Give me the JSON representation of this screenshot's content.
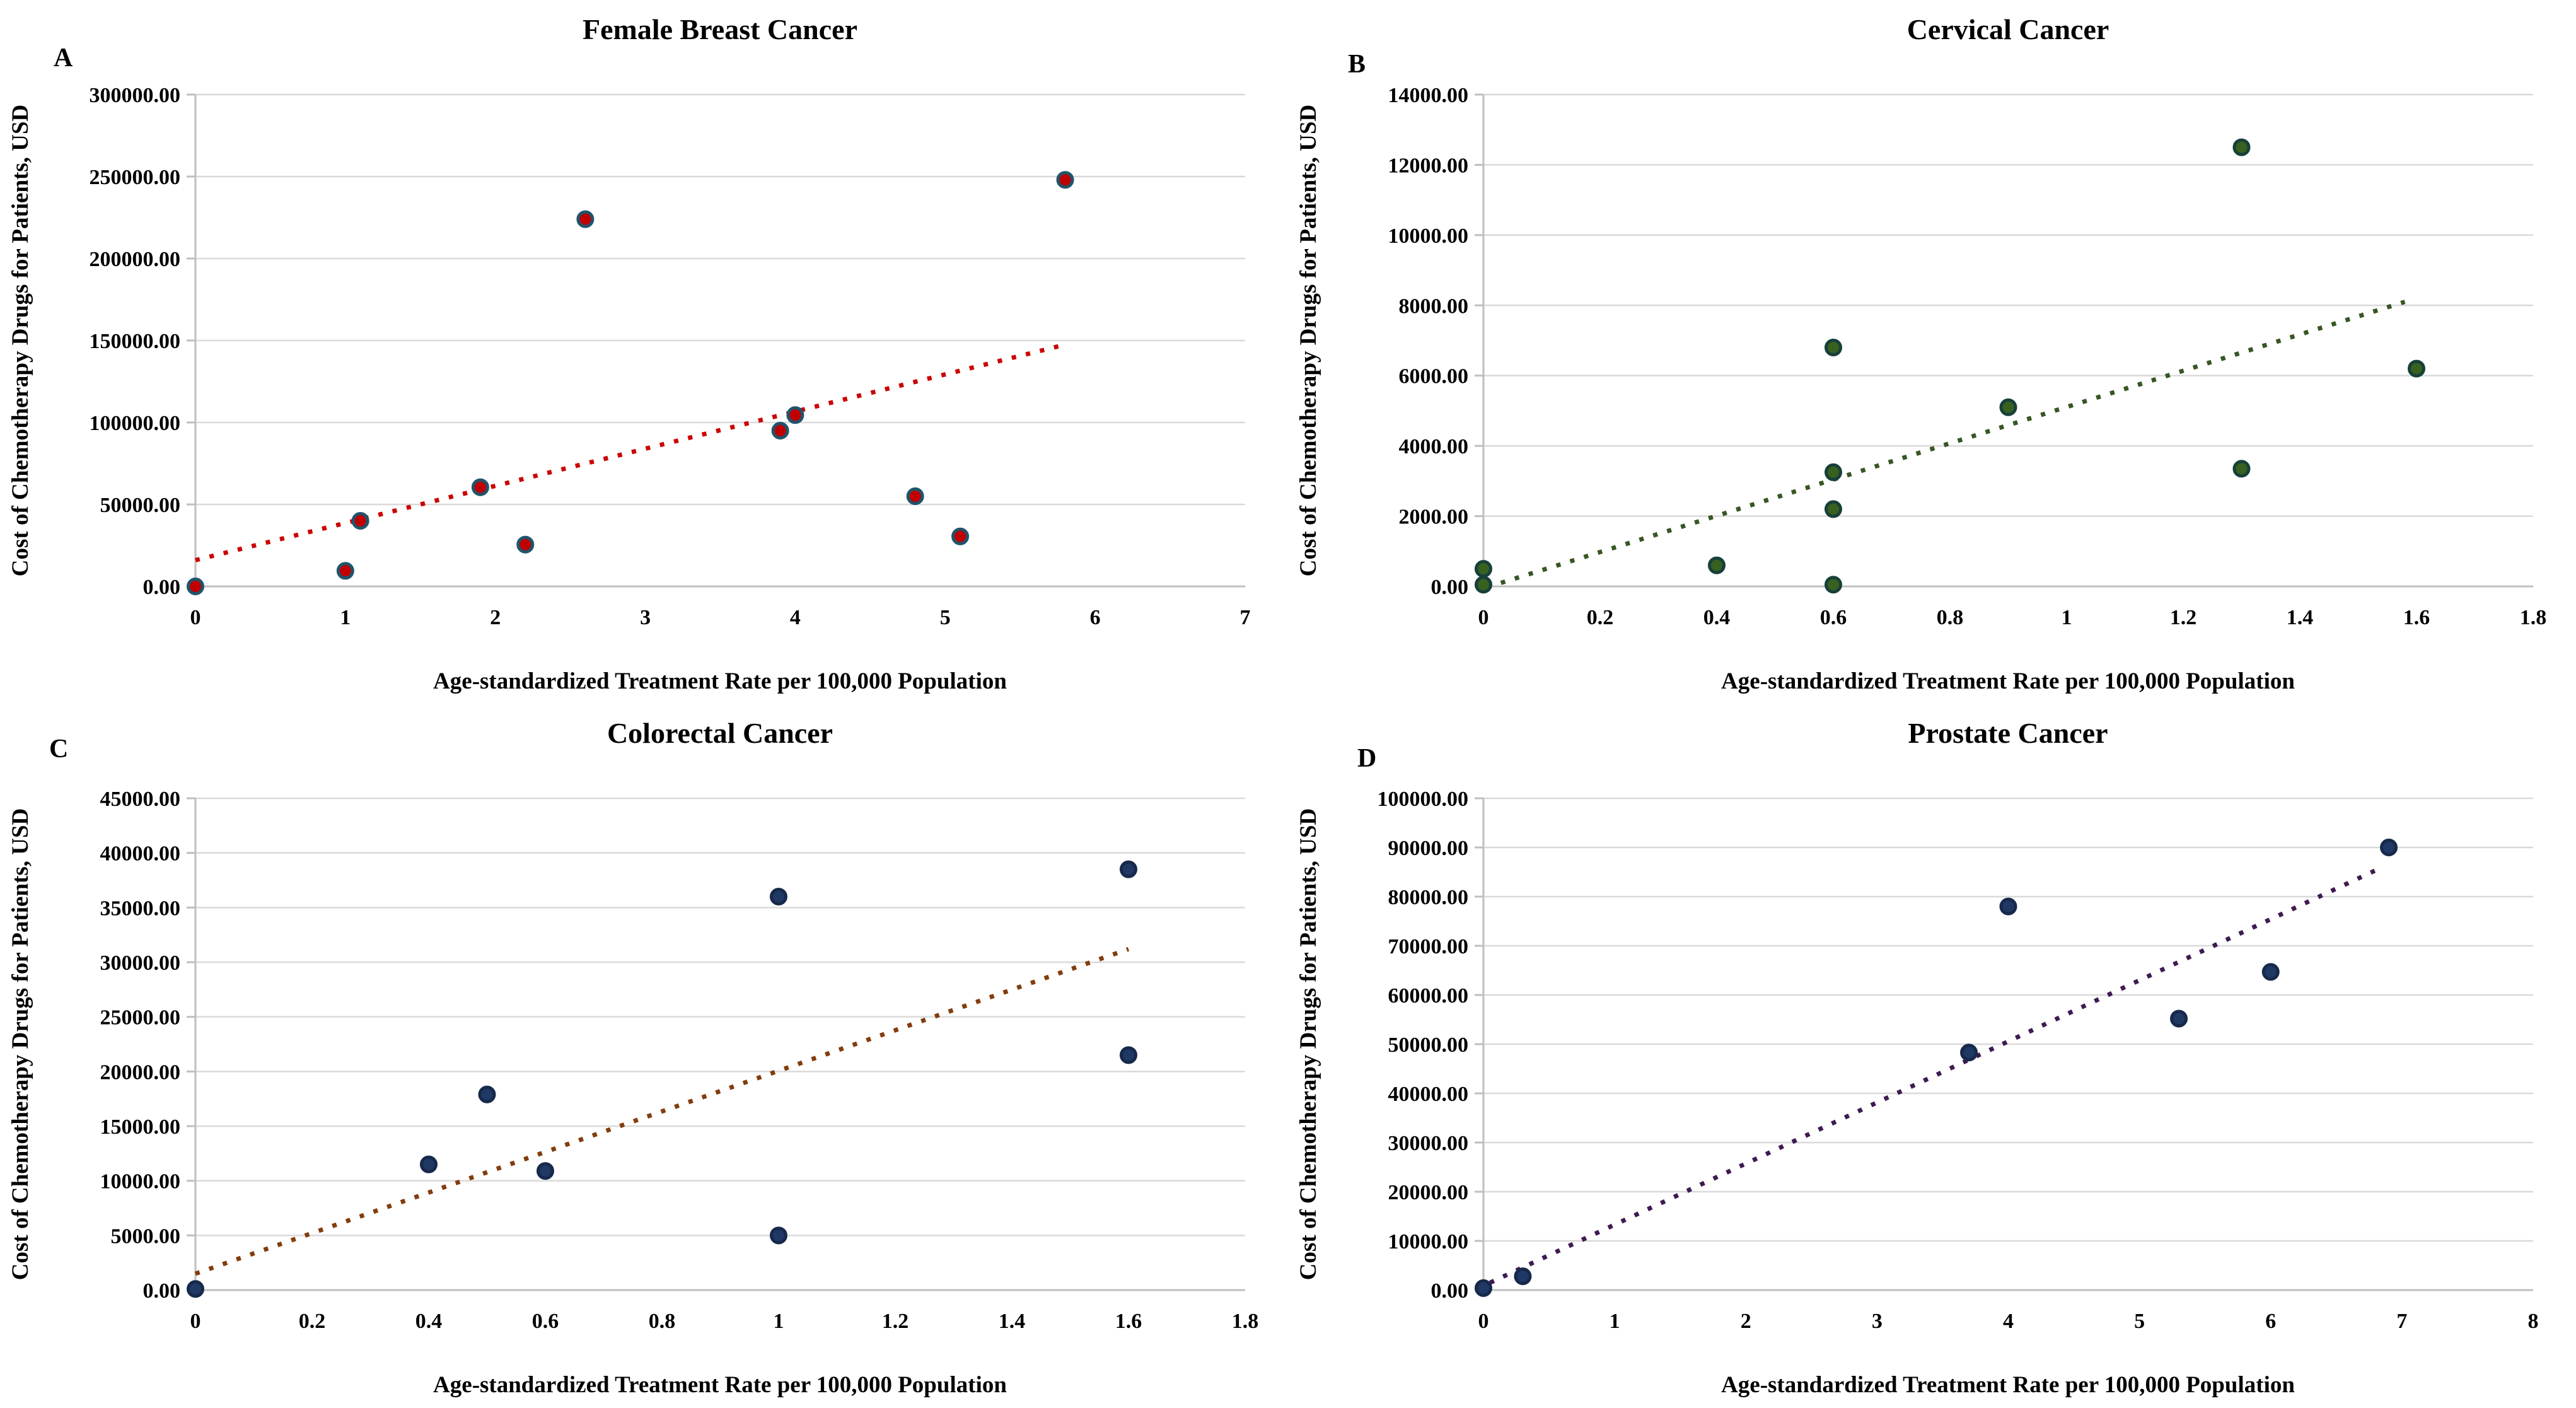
{
  "figure": {
    "background": "#FFFFFF"
  },
  "styles": {
    "grid_color": "#D9D9D9",
    "axis_color": "#BFBFBF",
    "text_color": "#000000"
  },
  "chart_data": [
    {
      "panel_label": "A",
      "title": "Female Breast Cancer",
      "type": "scatter",
      "xlabel": "Age-standardized Treatment Rate per 100,000 Population",
      "ylabel": "Cost of Chemotherapy Drugs for Patients, USD",
      "xlim": [
        0,
        7
      ],
      "ylim": [
        0,
        300000
      ],
      "xticks": [
        0,
        1,
        2,
        3,
        4,
        5,
        6,
        7
      ],
      "xtick_labels": [
        "0",
        "1",
        "2",
        "3",
        "4",
        "5",
        "6",
        "7"
      ],
      "yticks": [
        0,
        50000,
        100000,
        150000,
        200000,
        250000,
        300000
      ],
      "ytick_labels": [
        "0.00",
        "50000.00",
        "100000.00",
        "150000.00",
        "200000.00",
        "250000.00",
        "300000.00"
      ],
      "grid": true,
      "legend": "none",
      "marker_color": "#C00000",
      "marker_edge_color": "#20546B",
      "trend_color": "#CC0000",
      "points": [
        [
          0,
          0
        ],
        [
          1,
          9500
        ],
        [
          1.1,
          40000
        ],
        [
          1.9,
          60500
        ],
        [
          2.2,
          25500
        ],
        [
          2.6,
          224000
        ],
        [
          3.9,
          95000
        ],
        [
          4,
          104500
        ],
        [
          4.8,
          55000
        ],
        [
          5.1,
          30500
        ],
        [
          5.8,
          248000
        ]
      ],
      "trendline": {
        "x": [
          0,
          5.78
        ],
        "y": [
          16000,
          147000
        ]
      }
    },
    {
      "panel_label": "B",
      "title": "Cervical Cancer",
      "type": "scatter",
      "xlabel": "Age-standardized Treatment Rate per 100,000 Population",
      "ylabel": "Cost of Chemotherapy Drugs for Patients, USD",
      "xlim": [
        0,
        1.8
      ],
      "ylim": [
        0,
        14000
      ],
      "xticks": [
        0,
        0.2,
        0.4,
        0.6,
        0.8,
        1,
        1.2,
        1.4,
        1.6,
        1.8
      ],
      "xtick_labels": [
        "0",
        "0.2",
        "0.4",
        "0.6",
        "0.8",
        "1",
        "1.2",
        "1.4",
        "1.6",
        "1.8"
      ],
      "yticks": [
        0,
        2000,
        4000,
        6000,
        8000,
        10000,
        12000,
        14000
      ],
      "ytick_labels": [
        "0.00",
        "2000.00",
        "4000.00",
        "6000.00",
        "8000.00",
        "10000.00",
        "12000.00",
        "14000.00"
      ],
      "grid": true,
      "legend": "none",
      "marker_color": "#38611F",
      "marker_edge_color": "#17403A",
      "trend_color": "#375623",
      "points": [
        [
          0,
          500
        ],
        [
          0,
          50
        ],
        [
          0.4,
          600
        ],
        [
          0.6,
          6800
        ],
        [
          0.6,
          3250
        ],
        [
          0.6,
          2200
        ],
        [
          0.6,
          50
        ],
        [
          0.9,
          5100
        ],
        [
          1.3,
          12500
        ],
        [
          1.3,
          3350
        ],
        [
          1.6,
          6200
        ]
      ],
      "trendline": {
        "x": [
          0.03,
          1.58
        ],
        "y": [
          100,
          8100
        ]
      }
    },
    {
      "panel_label": "C",
      "title": "Colorectal Cancer",
      "type": "scatter",
      "xlabel": "Age-standardized Treatment Rate per 100,000 Population",
      "ylabel": "Cost of Chemotherapy Drugs for Patients, USD",
      "xlim": [
        0,
        1.8
      ],
      "ylim": [
        0,
        45000
      ],
      "xticks": [
        0,
        0.2,
        0.4,
        0.6,
        0.8,
        1,
        1.2,
        1.4,
        1.6,
        1.8
      ],
      "xtick_labels": [
        "0",
        "0.2",
        "0.4",
        "0.6",
        "0.8",
        "1",
        "1.2",
        "1.4",
        "1.6",
        "1.8"
      ],
      "yticks": [
        0,
        5000,
        10000,
        15000,
        20000,
        25000,
        30000,
        35000,
        40000,
        45000
      ],
      "ytick_labels": [
        "0.00",
        "5000.00",
        "10000.00",
        "15000.00",
        "20000.00",
        "25000.00",
        "30000.00",
        "35000.00",
        "40000.00",
        "45000.00"
      ],
      "grid": true,
      "legend": "none",
      "marker_color": "#1F3864",
      "marker_edge_color": "#17294B",
      "trend_color": "#833C0C",
      "points": [
        [
          0,
          100
        ],
        [
          0.4,
          11500
        ],
        [
          0.5,
          17900
        ],
        [
          0.6,
          10900
        ],
        [
          1,
          36000
        ],
        [
          1,
          5000
        ],
        [
          1.6,
          38500
        ],
        [
          1.6,
          21500
        ]
      ],
      "trendline": {
        "x": [
          0,
          1.6
        ],
        "y": [
          1500,
          31200
        ]
      }
    },
    {
      "panel_label": "D",
      "title": "Prostate Cancer",
      "type": "scatter",
      "xlabel": "Age-standardized Treatment Rate per 100,000 Population",
      "ylabel": "Cost of Chemotherapy Drugs for Patients, USD",
      "xlim": [
        0,
        8
      ],
      "ylim": [
        0,
        100000
      ],
      "xticks": [
        0,
        1,
        2,
        3,
        4,
        5,
        6,
        7,
        8
      ],
      "xtick_labels": [
        "0",
        "1",
        "2",
        "3",
        "4",
        "5",
        "6",
        "7",
        "8"
      ],
      "yticks": [
        0,
        10000,
        20000,
        30000,
        40000,
        50000,
        60000,
        70000,
        80000,
        90000,
        100000
      ],
      "ytick_labels": [
        "0.00",
        "10000.00",
        "20000.00",
        "30000.00",
        "40000.00",
        "50000.00",
        "60000.00",
        "70000.00",
        "80000.00",
        "90000.00",
        "100000.00"
      ],
      "grid": true,
      "legend": "none",
      "marker_color": "#1F3864",
      "marker_edge_color": "#17294B",
      "trend_color": "#3E1A52",
      "points": [
        [
          0,
          400
        ],
        [
          0.3,
          2800
        ],
        [
          3.7,
          48300
        ],
        [
          4,
          78000
        ],
        [
          5.3,
          55200
        ],
        [
          6,
          64700
        ],
        [
          6.9,
          90000
        ]
      ],
      "trendline": {
        "x": [
          0.05,
          6.82
        ],
        "y": [
          1500,
          85600
        ]
      }
    }
  ]
}
